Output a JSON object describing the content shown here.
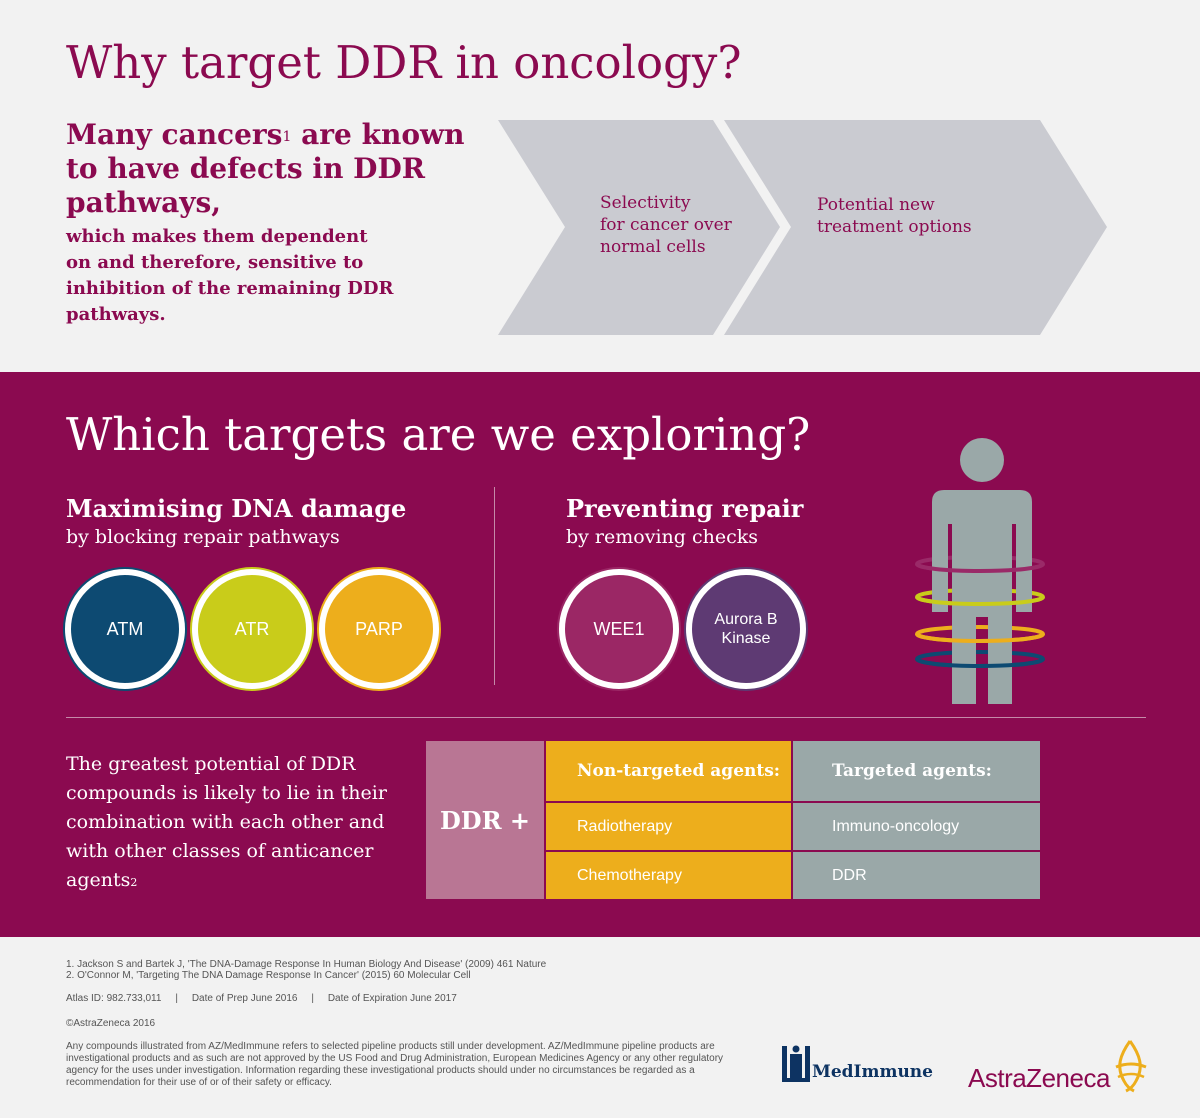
{
  "header": {
    "title": "Why target DDR in oncology?"
  },
  "intro": {
    "lead_before_sup": "Many cancers",
    "lead_sup": "1",
    "lead_after_sup": " are known to have defects in DDR pathways,",
    "body": "which makes them dependent on and therefore, sensitive to inhibition of the remaining DDR pathways."
  },
  "chevrons": [
    {
      "line1": "Selectivity",
      "line2": "for cancer over",
      "line3": "normal cells"
    },
    {
      "line1": "Potential new",
      "line2": "treatment options"
    }
  ],
  "targets": {
    "title": "Which targets are we exploring?",
    "group1": {
      "heading": "Maximising DNA damage",
      "sub": "by blocking repair pathways",
      "items": [
        "ATM",
        "ATR",
        "PARP"
      ]
    },
    "group2": {
      "heading": "Preventing repair",
      "sub": "by removing checks",
      "items": [
        "WEE1"
      ],
      "aurora_line1": "Aurora B",
      "aurora_line2": "Kinase"
    }
  },
  "colors": {
    "brand": "#8b0a50",
    "atm": "#0d4a72",
    "atr": "#c9cc1a",
    "parp": "#edae1c",
    "wee1": "#9b2765",
    "aurora": "#5e3a73",
    "chevron": "#cacbd1",
    "figure": "#9aa8a8"
  },
  "combination": {
    "text_main": "The greatest potential of DDR compounds is likely to lie in their combination with each other and with other classes of anticancer agents",
    "text_sup": "2",
    "ddr_label": "DDR +",
    "nontargeted_header": "Non-targeted agents:",
    "nontargeted_items": [
      "Radiotherapy",
      "Chemotherapy"
    ],
    "targeted_header": "Targeted agents:",
    "targeted_items": [
      "Immuno-oncology",
      "DDR"
    ]
  },
  "footer": {
    "ref1": "1. Jackson S and Bartek J, 'The DNA-Damage Response In Human Biology And Disease' (2009) 461  Nature",
    "ref2": "2. O'Connor M, 'Targeting The DNA Damage Response In Cancer' (2015) 60 Molecular Cell",
    "atlas": "Atlas ID: 982.733,011     |     Date of Prep June 2016     |     Date of Expiration June 2017",
    "copyright": "©AstraZeneca 2016",
    "disclaimer": "Any compounds illustrated from AZ/MedImmune refers to selected pipeline products still under development. AZ/MedImmune pipeline products are investigational products and as such are not approved by the US Food and Drug Administration, European Medicines Agency or any other regulatory agency for the uses under investigation. Information regarding these investigational products should under no circumstances be regarded as a recommendation for their use of or of their safety or efficacy.",
    "medimmune": "MedImmune",
    "astrazeneca": "AstraZeneca"
  }
}
